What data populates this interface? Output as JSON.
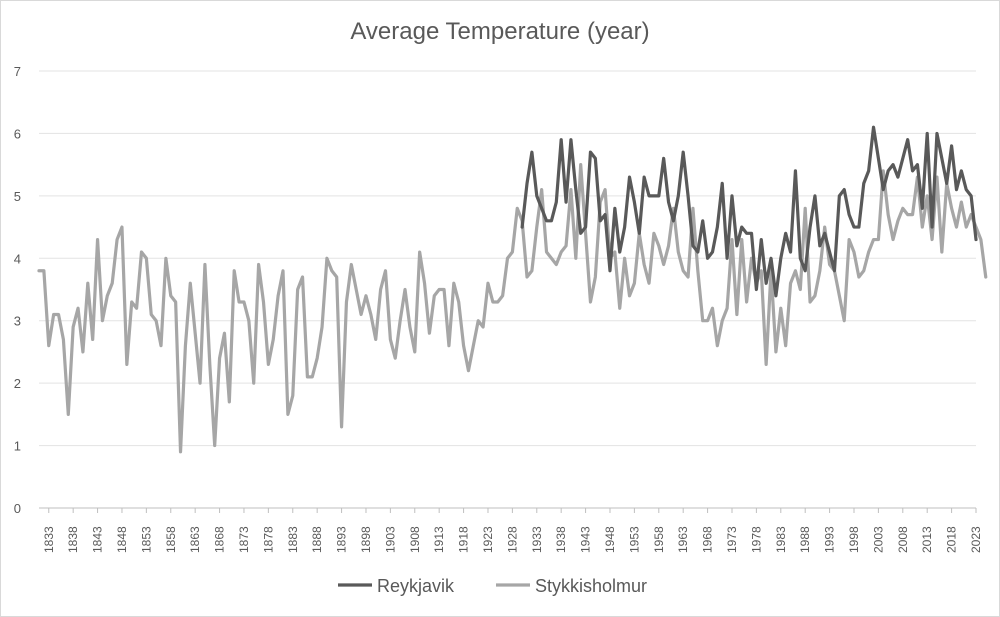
{
  "chart_data": {
    "type": "line",
    "title": "Average Temperature (year)",
    "xlabel": "",
    "ylabel": "",
    "xlim": [
      1831,
      2023
    ],
    "ylim": [
      0,
      7
    ],
    "yticks": [
      0,
      1,
      2,
      3,
      4,
      5,
      6,
      7
    ],
    "xticks": [
      1833,
      1838,
      1843,
      1848,
      1853,
      1858,
      1863,
      1868,
      1873,
      1878,
      1883,
      1888,
      1893,
      1898,
      1903,
      1908,
      1913,
      1918,
      1923,
      1928,
      1933,
      1938,
      1943,
      1948,
      1953,
      1958,
      1963,
      1968,
      1973,
      1978,
      1983,
      1988,
      1993,
      1998,
      2003,
      2008,
      2013,
      2018,
      2023
    ],
    "grid": "horizontal",
    "legend": "bottom",
    "series": [
      {
        "name": "Reykjavik",
        "color": "#595959",
        "start_year": 1930,
        "values": [
          4.5,
          5.2,
          5.7,
          5.0,
          4.8,
          4.6,
          4.6,
          4.9,
          5.9,
          4.9,
          5.9,
          5.1,
          4.4,
          4.5,
          5.7,
          5.6,
          4.6,
          4.7,
          3.8,
          4.8,
          4.1,
          4.5,
          5.3,
          4.9,
          4.4,
          5.3,
          5.0,
          5.0,
          5.0,
          5.6,
          4.9,
          4.6,
          5.0,
          5.7,
          5.0,
          4.2,
          4.1,
          4.6,
          4.0,
          4.1,
          4.5,
          5.2,
          4.0,
          5.0,
          4.2,
          4.5,
          4.4,
          4.4,
          3.5,
          4.3,
          3.6,
          4.0,
          3.4,
          4.0,
          4.4,
          4.1,
          5.4,
          4.0,
          3.8,
          4.5,
          5.0,
          4.2,
          4.4,
          4.1,
          3.8,
          5.0,
          5.1,
          4.7,
          4.5,
          4.5,
          5.2,
          5.4,
          6.1,
          5.6,
          5.1,
          5.4,
          5.5,
          5.3,
          5.6,
          5.9,
          5.4,
          5.5,
          4.8,
          6.0,
          4.5,
          6.0,
          5.6,
          5.2,
          5.8,
          5.1,
          5.4,
          5.1,
          5.0,
          4.3
        ]
      },
      {
        "name": "Stykkisholmur",
        "color": "#a6a6a6",
        "start_year": 1831,
        "values": [
          3.8,
          3.8,
          2.6,
          3.1,
          3.1,
          2.7,
          1.5,
          2.9,
          3.2,
          2.5,
          3.6,
          2.7,
          4.3,
          3.0,
          3.4,
          3.6,
          4.3,
          4.5,
          2.3,
          3.3,
          3.2,
          4.1,
          4.0,
          3.1,
          3.0,
          2.6,
          4.0,
          3.4,
          3.3,
          0.9,
          2.6,
          3.6,
          2.8,
          2.0,
          3.9,
          2.3,
          1.0,
          2.4,
          2.8,
          1.7,
          3.8,
          3.3,
          3.3,
          3.0,
          2.0,
          3.9,
          3.3,
          2.3,
          2.7,
          3.4,
          3.8,
          1.5,
          1.8,
          3.5,
          3.7,
          2.1,
          2.1,
          2.4,
          2.9,
          4.0,
          3.8,
          3.7,
          1.3,
          3.3,
          3.9,
          3.5,
          3.1,
          3.4,
          3.1,
          2.7,
          3.5,
          3.8,
          2.7,
          2.4,
          3.0,
          3.5,
          2.9,
          2.5,
          4.1,
          3.6,
          2.8,
          3.4,
          3.5,
          3.5,
          2.6,
          3.6,
          3.3,
          2.6,
          2.2,
          2.6,
          3.0,
          2.9,
          3.6,
          3.3,
          3.3,
          3.4,
          4.0,
          4.1,
          4.8,
          4.6,
          3.7,
          3.8,
          4.5,
          5.1,
          4.1,
          4.0,
          3.9,
          4.1,
          4.2,
          5.1,
          4.0,
          5.5,
          4.4,
          3.3,
          3.7,
          4.9,
          5.1,
          4.0,
          4.1,
          3.2,
          4.0,
          3.4,
          3.6,
          4.4,
          3.9,
          3.6,
          4.4,
          4.2,
          3.9,
          4.2,
          4.8,
          4.1,
          3.8,
          3.7,
          4.8,
          3.8,
          3.0,
          3.0,
          3.2,
          2.6,
          3.0,
          3.2,
          4.3,
          3.1,
          4.3,
          3.3,
          4.0,
          3.6,
          3.8,
          2.3,
          3.8,
          2.5,
          3.2,
          2.6,
          3.6,
          3.8,
          3.5,
          4.8,
          3.3,
          3.4,
          3.8,
          4.5,
          3.9,
          3.8,
          3.4,
          3.0,
          4.3,
          4.1,
          3.7,
          3.8,
          4.1,
          4.3,
          4.3,
          5.4,
          4.7,
          4.3,
          4.6,
          4.8,
          4.7,
          4.7,
          5.3,
          4.5,
          5.0,
          4.3,
          5.3,
          4.1,
          5.2,
          4.8,
          4.5,
          4.9,
          4.5,
          4.7,
          4.5,
          4.3,
          3.7
        ]
      }
    ]
  }
}
